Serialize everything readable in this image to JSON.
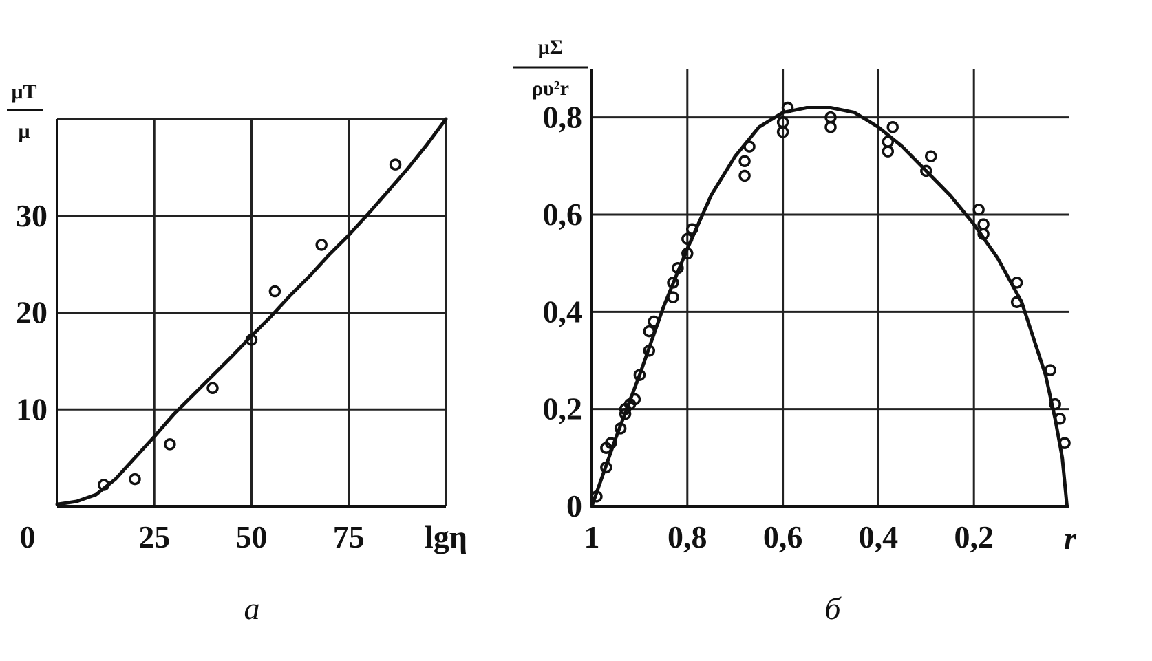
{
  "chart_data": [
    {
      "type": "line",
      "panel_label": "a",
      "ylabel_num": "μT",
      "ylabel_den": "μ",
      "xlabel": "lgη",
      "origin_label": "0",
      "xticks": [
        {
          "value": 25,
          "label": "25"
        },
        {
          "value": 50,
          "label": "50"
        },
        {
          "value": 75,
          "label": "75"
        }
      ],
      "yticks": [
        {
          "value": 10,
          "label": "10"
        },
        {
          "value": 20,
          "label": "20"
        },
        {
          "value": 30,
          "label": "30"
        }
      ],
      "xgrid": [
        25,
        50,
        75,
        100
      ],
      "ygrid": [
        10,
        20,
        30,
        40
      ],
      "xlim": [
        0,
        100
      ],
      "ylim": [
        0,
        40
      ],
      "grid": true,
      "curve": {
        "x": [
          0,
          5,
          10,
          15,
          20,
          25,
          30,
          35,
          40,
          45,
          50,
          55,
          60,
          65,
          70,
          75,
          80,
          85,
          90,
          95,
          100
        ],
        "y": [
          0.2,
          0.5,
          1.2,
          2.8,
          5.0,
          7.2,
          9.5,
          11.5,
          13.5,
          15.5,
          17.6,
          19.6,
          21.8,
          23.8,
          26.0,
          28.0,
          30.2,
          32.5,
          34.8,
          37.3,
          40.0
        ]
      },
      "points": {
        "x": [
          12,
          20,
          29,
          40,
          50,
          56,
          68,
          87
        ],
        "y": [
          2.2,
          2.8,
          6.4,
          12.2,
          17.2,
          22.2,
          27.0,
          35.3
        ]
      }
    },
    {
      "type": "line",
      "panel_label": "б",
      "ylabel_num": "μΣ",
      "ylabel_den": "ρυ²r",
      "xlabel": "r",
      "xticks": [
        {
          "value": 1.0,
          "label": "1"
        },
        {
          "value": 0.8,
          "label": "0,8"
        },
        {
          "value": 0.6,
          "label": "0,6"
        },
        {
          "value": 0.4,
          "label": "0,4"
        },
        {
          "value": 0.2,
          "label": "0,2"
        }
      ],
      "yticks": [
        {
          "value": 0.0,
          "label": "0"
        },
        {
          "value": 0.2,
          "label": "0,2"
        },
        {
          "value": 0.4,
          "label": "0,4"
        },
        {
          "value": 0.6,
          "label": "0,6"
        },
        {
          "value": 0.8,
          "label": "0,8"
        }
      ],
      "xgrid": [
        0.8,
        0.6,
        0.4,
        0.2
      ],
      "ygrid": [
        0.2,
        0.4,
        0.6,
        0.8
      ],
      "xlim": [
        1.0,
        0.0
      ],
      "ylim": [
        0.0,
        0.9
      ],
      "grid": true,
      "curve": {
        "x": [
          1.0,
          0.95,
          0.9,
          0.85,
          0.8,
          0.75,
          0.7,
          0.65,
          0.6,
          0.55,
          0.5,
          0.45,
          0.4,
          0.35,
          0.3,
          0.25,
          0.2,
          0.15,
          0.1,
          0.05,
          0.03,
          0.015,
          0.005
        ],
        "y": [
          0.0,
          0.14,
          0.27,
          0.41,
          0.53,
          0.64,
          0.72,
          0.78,
          0.81,
          0.82,
          0.82,
          0.81,
          0.78,
          0.74,
          0.69,
          0.64,
          0.58,
          0.51,
          0.42,
          0.27,
          0.18,
          0.1,
          0.0
        ]
      },
      "points": {
        "x": [
          0.99,
          0.97,
          0.97,
          0.96,
          0.94,
          0.93,
          0.93,
          0.92,
          0.91,
          0.9,
          0.88,
          0.88,
          0.87,
          0.83,
          0.83,
          0.82,
          0.8,
          0.8,
          0.79,
          0.68,
          0.68,
          0.67,
          0.6,
          0.6,
          0.59,
          0.5,
          0.5,
          0.38,
          0.38,
          0.37,
          0.3,
          0.29,
          0.19,
          0.18,
          0.18,
          0.11,
          0.11,
          0.04,
          0.03,
          0.02,
          0.01
        ],
        "y": [
          0.02,
          0.08,
          0.12,
          0.13,
          0.16,
          0.19,
          0.2,
          0.21,
          0.22,
          0.27,
          0.32,
          0.36,
          0.38,
          0.43,
          0.46,
          0.49,
          0.52,
          0.55,
          0.57,
          0.68,
          0.71,
          0.74,
          0.77,
          0.79,
          0.82,
          0.78,
          0.8,
          0.73,
          0.75,
          0.78,
          0.69,
          0.72,
          0.61,
          0.58,
          0.56,
          0.42,
          0.46,
          0.28,
          0.21,
          0.18,
          0.13
        ]
      }
    }
  ]
}
